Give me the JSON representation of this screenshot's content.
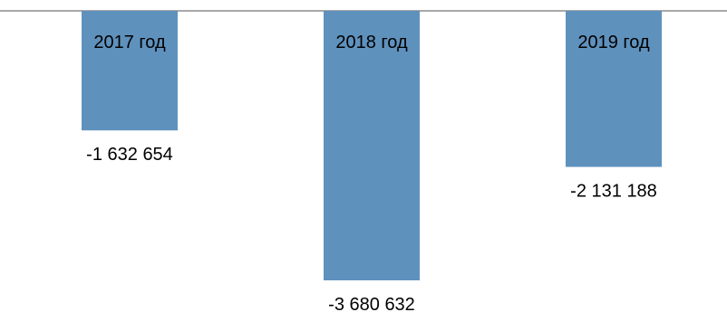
{
  "chart_data": {
    "type": "bar",
    "categories": [
      "2017 год",
      "2018 год",
      "2019 год"
    ],
    "values": [
      -1632654,
      -3680632,
      -2131188
    ],
    "value_labels": [
      "-1 632 654",
      "-3 680 632",
      "-2 131 188"
    ],
    "title": "",
    "xlabel": "",
    "ylabel": "",
    "ylim": [
      -3680632,
      0
    ],
    "grid": false,
    "legend": "none",
    "colors": {
      "bar": "#5f91bd",
      "axis": "#8c8c8c",
      "text": "#000000"
    }
  }
}
